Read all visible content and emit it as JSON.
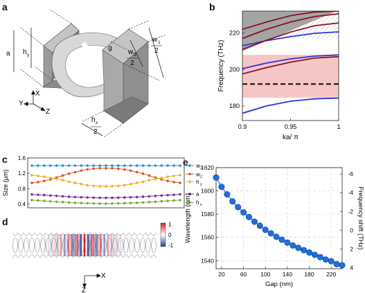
{
  "panel_labels": {
    "a": "a",
    "b": "b",
    "c": "c",
    "d": "d",
    "e": "e"
  },
  "panel_a": {
    "labels": {
      "a": "a",
      "hy": "h",
      "hy_sub": "y",
      "w1": "w",
      "w1_sub": "1",
      "w1_den": "2",
      "w2": "w",
      "w2_sub": "2",
      "w2_den": "2",
      "g": "g",
      "hx": "h",
      "hx_sub": "x",
      "hx_den": "2"
    },
    "axes": {
      "x": "X",
      "y": "Y",
      "z": "Z"
    },
    "colors": {
      "block": "#8f8f8f",
      "block_light": "#bdbdbd",
      "ring": "#d6d6d6"
    }
  },
  "panel_d": {
    "axes": {
      "x": "X",
      "z": "Z"
    },
    "colorbar_ticks": [
      "1",
      "0",
      "-1"
    ]
  },
  "chart_data": [
    {
      "panel": "b",
      "type": "line",
      "xlabel": "ka/ π",
      "ylabel": "Frequency (THz)",
      "xlim": [
        0.9,
        1.0
      ],
      "ylim": [
        172,
        232
      ],
      "x_ticks": [
        "0.9",
        "0.95",
        "1"
      ],
      "y_ticks": [
        "180",
        "200",
        "220"
      ],
      "light_cone_color": "#a6a6a6",
      "bandgap": {
        "from": 184.5,
        "to": 208,
        "color": "#f6c6c6"
      },
      "resonance_line": 192,
      "series": [
        {
          "color": "#2636d8",
          "x": [
            0.9,
            0.925,
            0.95,
            0.975,
            1.0
          ],
          "y": [
            176,
            180,
            182.6,
            183.9,
            184.3
          ]
        },
        {
          "color": "#2636d8",
          "x": [
            0.9,
            0.925,
            0.95,
            0.975,
            1.0
          ],
          "y": [
            200.5,
            203.5,
            205.8,
            207.3,
            208
          ]
        },
        {
          "color": "#2636d8",
          "x": [
            0.9,
            0.925,
            0.95,
            0.975,
            1.0
          ],
          "y": [
            213,
            215.8,
            218,
            219.8,
            220.6
          ]
        },
        {
          "color": "#8b1020",
          "x": [
            0.9,
            0.925,
            0.95,
            0.975,
            1.0
          ],
          "y": [
            197.5,
            201,
            204,
            206.2,
            207
          ]
        },
        {
          "color": "#8b1020",
          "x": [
            0.9,
            0.925,
            0.95,
            0.975,
            1.0
          ],
          "y": [
            211,
            216,
            220.5,
            224,
            225.5
          ]
        },
        {
          "color": "#8b1020",
          "x": [
            0.9,
            0.925,
            0.95,
            0.975,
            1.0
          ],
          "y": [
            217,
            222,
            226,
            229,
            230.5
          ]
        },
        {
          "color": "#8b1020",
          "x": [
            0.9,
            0.925,
            0.95,
            0.975,
            1.0
          ],
          "y": [
            222,
            226,
            229.5,
            231.5,
            232
          ]
        }
      ]
    },
    {
      "panel": "c",
      "type": "line",
      "ylabel": "Size (μm)",
      "ylim": [
        0.3,
        1.6
      ],
      "y_ticks": [
        "0.4",
        "0.8",
        "1.2",
        "1.6"
      ],
      "series": [
        {
          "name": "w",
          "sub": "1",
          "color": "#2f8fd0",
          "values": [
            1.4,
            1.4,
            1.4,
            1.4,
            1.4,
            1.4,
            1.4,
            1.4,
            1.4,
            1.4,
            1.4,
            1.4,
            1.4,
            1.4,
            1.4,
            1.4,
            1.4,
            1.4,
            1.4,
            1.4,
            1.4,
            1.4,
            1.4,
            1.4,
            1.4
          ]
        },
        {
          "name": "w",
          "sub": "2",
          "color": "#d9531e",
          "values": [
            0.95,
            0.97,
            1.0,
            1.04,
            1.09,
            1.14,
            1.19,
            1.23,
            1.27,
            1.3,
            1.32,
            1.33,
            1.33,
            1.33,
            1.32,
            1.3,
            1.27,
            1.23,
            1.19,
            1.14,
            1.09,
            1.04,
            1.0,
            0.97,
            0.95
          ]
        },
        {
          "name": "h",
          "sub": "y",
          "color": "#edb120",
          "values": [
            1.15,
            1.13,
            1.11,
            1.08,
            1.05,
            1.02,
            0.98,
            0.95,
            0.92,
            0.89,
            0.87,
            0.86,
            0.86,
            0.86,
            0.87,
            0.89,
            0.92,
            0.95,
            0.98,
            1.02,
            1.05,
            1.08,
            1.11,
            1.13,
            1.15
          ]
        },
        {
          "name": "a",
          "sub": "",
          "color": "#7e2f8e",
          "values": [
            0.65,
            0.64,
            0.63,
            0.62,
            0.61,
            0.6,
            0.59,
            0.58,
            0.575,
            0.57,
            0.565,
            0.56,
            0.56,
            0.56,
            0.565,
            0.57,
            0.575,
            0.58,
            0.59,
            0.6,
            0.61,
            0.62,
            0.63,
            0.64,
            0.65
          ]
        },
        {
          "name": "h",
          "sub": "x",
          "color": "#77ac30",
          "values": [
            0.5,
            0.49,
            0.48,
            0.47,
            0.46,
            0.45,
            0.44,
            0.43,
            0.425,
            0.42,
            0.415,
            0.41,
            0.41,
            0.41,
            0.415,
            0.42,
            0.425,
            0.43,
            0.44,
            0.45,
            0.46,
            0.47,
            0.48,
            0.49,
            0.5
          ]
        }
      ]
    },
    {
      "panel": "e",
      "type": "scatter",
      "xlabel": "Gap (nm)",
      "ylabel": "Wavelength (nm)",
      "y2label": "Frequency shift (THz)",
      "xlim": [
        10,
        240
      ],
      "ylim": [
        1533,
        1620
      ],
      "x_ticks": [
        "20",
        "60",
        "100",
        "140",
        "180",
        "220"
      ],
      "y_ticks": [
        "1540",
        "1560",
        "1580",
        "1600",
        "1620"
      ],
      "y2_ticks": [
        "-6",
        "-4",
        "-2",
        "0",
        "2",
        "4"
      ],
      "grid": true,
      "marker_color": "#1f6fe0",
      "x": [
        10,
        20,
        30,
        40,
        50,
        60,
        70,
        80,
        90,
        100,
        110,
        120,
        130,
        140,
        150,
        160,
        170,
        180,
        190,
        200,
        210,
        220,
        230,
        240
      ],
      "y": [
        1611.5,
        1603.5,
        1597,
        1591,
        1586,
        1581.5,
        1577.5,
        1573.5,
        1570,
        1566.5,
        1563.5,
        1560.5,
        1558,
        1555.5,
        1553,
        1551,
        1549,
        1547,
        1545,
        1543,
        1541,
        1539.5,
        1537,
        1536
      ]
    }
  ]
}
